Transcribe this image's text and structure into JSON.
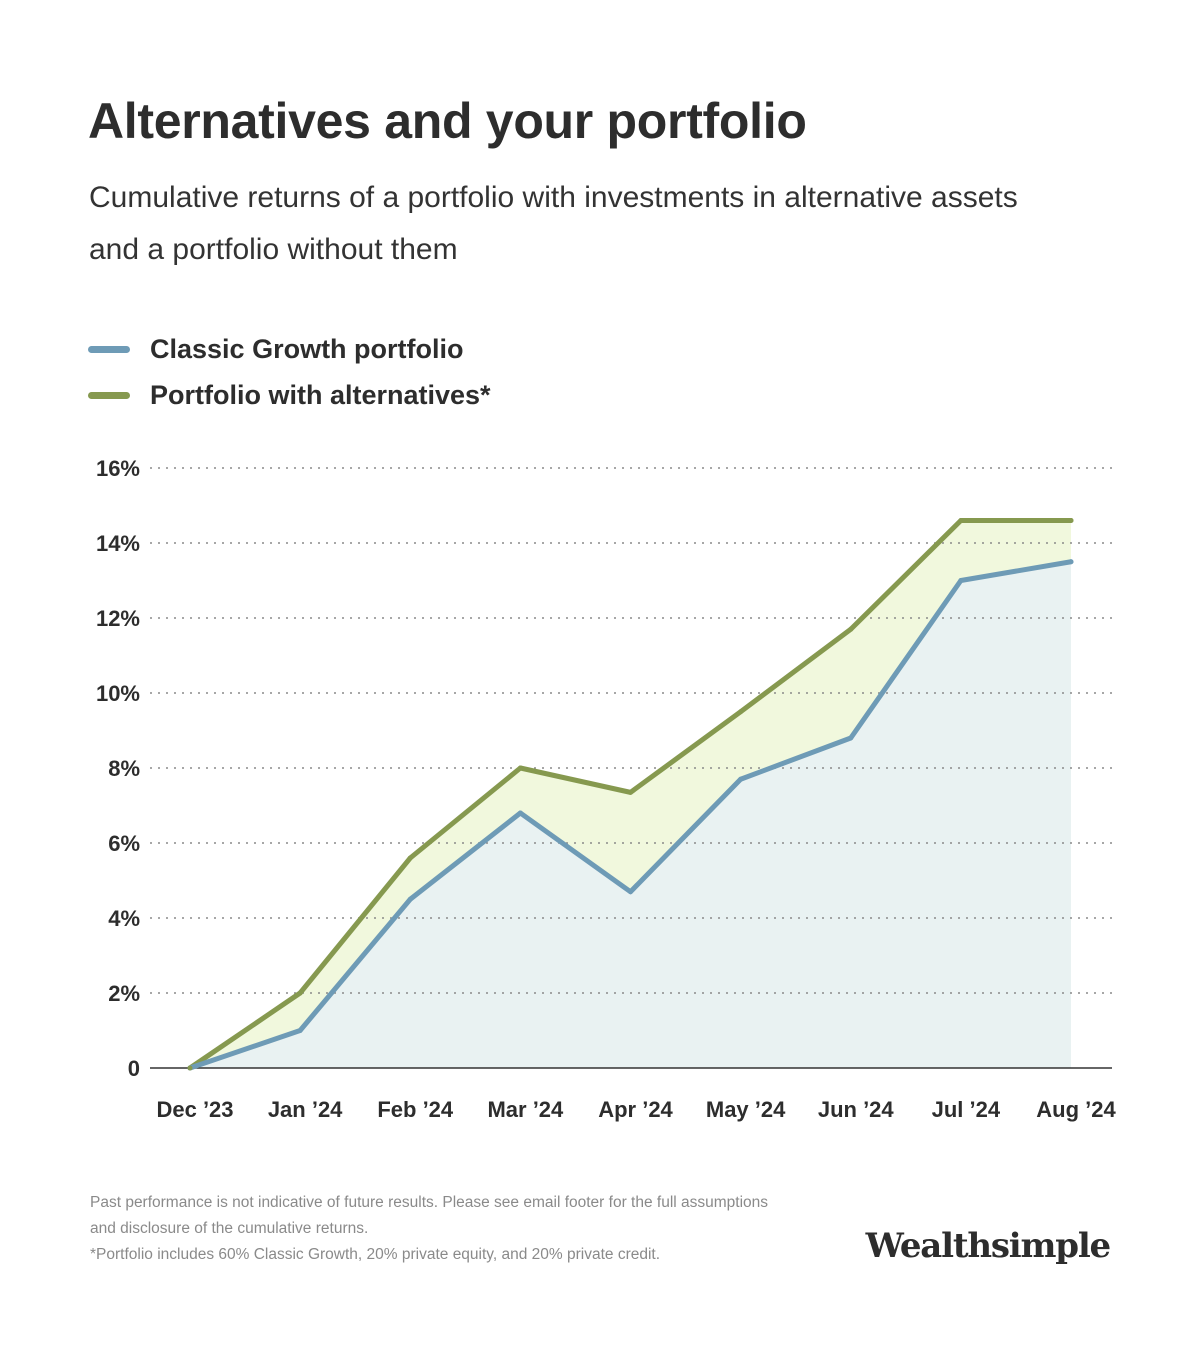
{
  "title": "Alternatives and your portfolio",
  "subtitle": "Cumulative returns of a portfolio with investments in alternative assets and a portfolio without them",
  "colors": {
    "classic_line": "#6e9bb6",
    "classic_fill": "#e9f2f2",
    "alt_line": "#86994f",
    "alt_fill": "#f1f8dd",
    "grid": "#8a8a8a",
    "axis": "#333333"
  },
  "legend": [
    {
      "label": "Classic Growth portfolio",
      "color": "#6e9bb6"
    },
    {
      "label": "Portfolio with alternatives*",
      "color": "#86994f"
    }
  ],
  "chart_data": {
    "type": "area",
    "categories": [
      "Dec ’23",
      "Jan ’24",
      "Feb ’24",
      "Mar ’24",
      "Apr ’24",
      "May ’24",
      "Jun ’24",
      "Jul ’24",
      "Aug ’24"
    ],
    "series": [
      {
        "name": "Classic Growth portfolio",
        "values": [
          0,
          1.0,
          4.5,
          6.8,
          4.7,
          7.7,
          8.8,
          13.0,
          13.5
        ]
      },
      {
        "name": "Portfolio with alternatives*",
        "values": [
          0,
          2.0,
          5.6,
          8.0,
          7.35,
          9.5,
          11.7,
          14.6,
          14.6
        ]
      }
    ],
    "yticks": [
      "0",
      "2%",
      "4%",
      "6%",
      "8%",
      "10%",
      "12%",
      "14%",
      "16%"
    ],
    "ylim": [
      0,
      16
    ],
    "grid": true,
    "legend_position": "top-left"
  },
  "footnotes": {
    "line1": "Past performance is not indicative of future results. Please see email footer for the full assumptions and disclosure of the cumulative returns.",
    "line2": "*Portfolio includes 60% Classic Growth, 20% private equity, and 20% private credit."
  },
  "logo": "Wealthsimple"
}
